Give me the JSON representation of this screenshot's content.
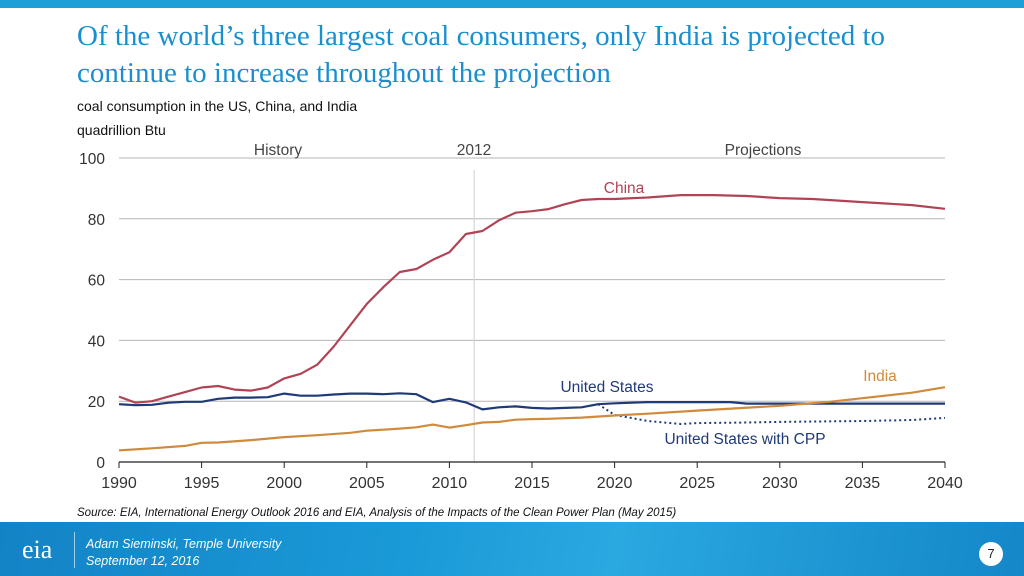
{
  "slide": {
    "title": "Of the world’s three largest coal consumers, only India is projected to continue to increase throughout the projection",
    "subtitle": "coal consumption in the US, China, and India",
    "units": "quadrillion Btu",
    "source": "Source:  EIA, International Energy Outlook 2016 and EIA, Analysis of the Impacts of the Clean Power Plan (May 2015)",
    "footer": {
      "logo_text": "eia",
      "presenter": "Adam Sieminski, Temple University",
      "date": "September 12, 2016",
      "page_number": "7"
    },
    "colors": {
      "accent": "#1a8fce",
      "topbar": "#1e9fd8"
    }
  },
  "chart_data": {
    "type": "line",
    "title": "coal consumption in the US, China, and India",
    "xlabel": "",
    "ylabel": "quadrillion Btu",
    "xlim": [
      1990,
      2040
    ],
    "ylim": [
      0,
      100
    ],
    "grid": true,
    "x_ticks": [
      "1990",
      "1995",
      "2000",
      "2005",
      "2010",
      "2015",
      "2020",
      "2025",
      "2030",
      "2035",
      "2040"
    ],
    "y_ticks": [
      "0",
      "20",
      "40",
      "60",
      "80",
      "100"
    ],
    "annotations": [
      {
        "text": "History",
        "kind": "region-label"
      },
      {
        "text": "2012",
        "kind": "divider-label",
        "x": 2011.5
      },
      {
        "text": "Projections",
        "kind": "region-label"
      }
    ],
    "series": [
      {
        "name": "China",
        "label": "China",
        "color": "#b04456",
        "style": "solid",
        "x": [
          1990,
          1991,
          1992,
          1993,
          1994,
          1995,
          1996,
          1997,
          1998,
          1999,
          2000,
          2001,
          2002,
          2003,
          2004,
          2005,
          2006,
          2007,
          2008,
          2009,
          2010,
          2011,
          2012,
          2013,
          2014,
          2015,
          2016,
          2017,
          2018,
          2019,
          2020,
          2022,
          2024,
          2026,
          2028,
          2030,
          2032,
          2035,
          2038,
          2040
        ],
        "values": [
          21.5,
          19.5,
          20,
          21.5,
          23,
          24.5,
          25,
          23.8,
          23.5,
          24.5,
          27.5,
          29,
          32,
          38,
          45,
          52,
          57.5,
          62.5,
          63.5,
          66.5,
          69,
          75,
          76,
          79.5,
          82,
          82.5,
          83.2,
          84.8,
          86.2,
          86.5,
          86.5,
          87,
          87.8,
          87.8,
          87.5,
          86.8,
          86.5,
          85.5,
          84.5,
          83.3
        ]
      },
      {
        "name": "United States",
        "label": "United States",
        "color": "#1f3a78",
        "style": "solid",
        "x": [
          1990,
          1991,
          1992,
          1993,
          1994,
          1995,
          1996,
          1997,
          1998,
          1999,
          2000,
          2001,
          2002,
          2003,
          2004,
          2005,
          2006,
          2007,
          2008,
          2009,
          2010,
          2011,
          2012,
          2013,
          2014,
          2015,
          2016,
          2017,
          2018,
          2019,
          2020,
          2022,
          2025,
          2027,
          2028,
          2030,
          2035,
          2040
        ],
        "values": [
          19,
          18.7,
          18.8,
          19.5,
          19.8,
          19.8,
          20.8,
          21.2,
          21.2,
          21.3,
          22.5,
          21.8,
          21.8,
          22.2,
          22.5,
          22.5,
          22.3,
          22.6,
          22.3,
          19.7,
          20.8,
          19.6,
          17.3,
          18,
          18.3,
          17.8,
          17.6,
          17.8,
          18,
          19,
          19.3,
          19.7,
          19.7,
          19.7,
          19.2,
          19.2,
          19.2,
          19.2
        ]
      },
      {
        "name": "United States with CPP",
        "label": "United States with CPP",
        "color": "#1f3a78",
        "style": "dotted",
        "x": [
          2019,
          2020,
          2021,
          2022,
          2024,
          2025,
          2028,
          2030,
          2035,
          2038,
          2040
        ],
        "values": [
          19,
          15.5,
          14.5,
          13.5,
          12.5,
          12.8,
          13,
          13.2,
          13.5,
          13.8,
          14.5
        ]
      },
      {
        "name": "India",
        "label": "India",
        "color": "#d08a3c",
        "style": "solid",
        "x": [
          1990,
          1992,
          1994,
          1995,
          1996,
          1998,
          2000,
          2002,
          2004,
          2005,
          2007,
          2008,
          2009,
          2010,
          2011,
          2012,
          2013,
          2014,
          2015,
          2016,
          2018,
          2020,
          2022,
          2025,
          2030,
          2033,
          2035,
          2038,
          2040
        ],
        "values": [
          3.8,
          4.5,
          5.3,
          6.3,
          6.4,
          7.2,
          8.2,
          8.8,
          9.6,
          10.3,
          11,
          11.4,
          12.3,
          11.3,
          12.1,
          13,
          13.2,
          13.9,
          14.1,
          14.2,
          14.6,
          15.3,
          15.9,
          16.9,
          18.5,
          19.8,
          21,
          22.8,
          24.6
        ]
      }
    ]
  }
}
